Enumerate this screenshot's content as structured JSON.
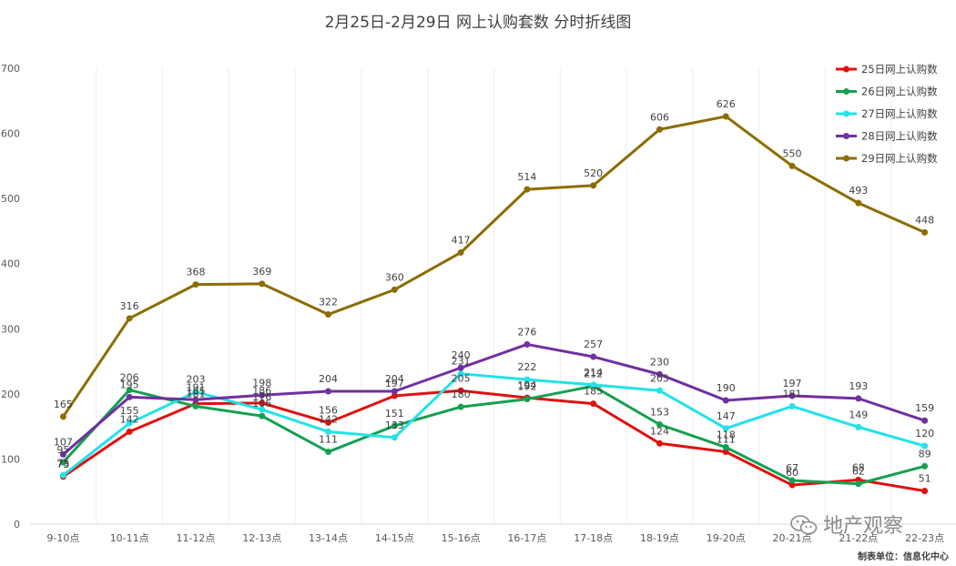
{
  "chart_data": {
    "type": "line",
    "title": "2月25日-2月29日 网上认购套数 分时折线图",
    "categories": [
      "9-10点",
      "10-11点",
      "11-12点",
      "12-13点",
      "13-14点",
      "14-15点",
      "15-16点",
      "16-17点",
      "17-18点",
      "18-19点",
      "19-20点",
      "20-21点",
      "21-22点",
      "22-23点"
    ],
    "ylim": [
      0,
      700
    ],
    "yticks": [
      0,
      100,
      200,
      300,
      400,
      500,
      600,
      700
    ],
    "grid": "vertical",
    "legend": "top-right",
    "data_labels": true,
    "series": [
      {
        "name": "25日网上认购数",
        "color": "#e01010",
        "values": [
          73,
          142,
          185,
          186,
          156,
          197,
          205,
          194,
          185,
          124,
          111,
          60,
          68,
          51
        ]
      },
      {
        "name": "26日网上认购数",
        "color": "#14a050",
        "values": [
          95,
          206,
          181,
          166,
          111,
          151,
          180,
          192,
          212,
          153,
          118,
          67,
          62,
          89
        ]
      },
      {
        "name": "27日网上认购数",
        "color": "#22e2e8",
        "values": [
          75,
          155,
          203,
          176,
          142,
          133,
          231,
          222,
          214,
          205,
          147,
          181,
          149,
          120
        ]
      },
      {
        "name": "28日网上认购数",
        "color": "#7030a0",
        "values": [
          107,
          195,
          191,
          198,
          204,
          204,
          240,
          276,
          257,
          230,
          190,
          197,
          193,
          159
        ]
      },
      {
        "name": "29日网上认购数",
        "color": "#8c6d00",
        "values": [
          165,
          316,
          368,
          369,
          322,
          360,
          417,
          514,
          520,
          606,
          626,
          550,
          493,
          448
        ]
      }
    ]
  },
  "footer": {
    "source": "制表单位：信息化中心",
    "watermark": "地产观察"
  }
}
